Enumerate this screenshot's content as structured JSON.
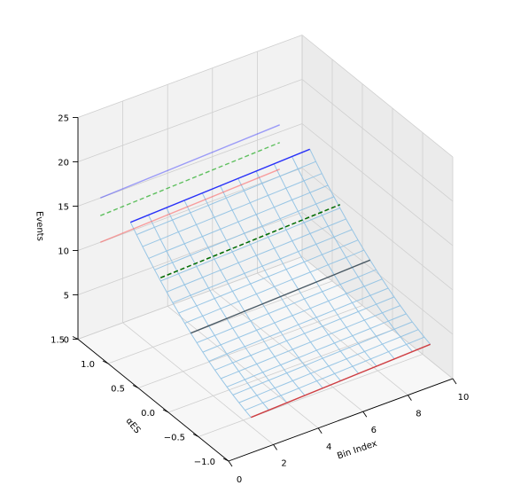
{
  "chart_data": {
    "type": "surface3d",
    "title": "",
    "xlabel": "Bin Index",
    "ylabel": "αES",
    "zlabel": "Events",
    "x_ticks": [
      "0",
      "2",
      "4",
      "6",
      "8",
      "10"
    ],
    "y_ticks": [
      "−1.0",
      "−0.5",
      "0.0",
      "0.5",
      "1.0",
      "1.5"
    ],
    "z_ticks": [
      "0",
      "5",
      "10",
      "15",
      "20",
      "25"
    ],
    "xlim": [
      0,
      10
    ],
    "ylim": [
      -1.0,
      1.5
    ],
    "zlim": [
      0,
      25
    ],
    "grid": true,
    "surface": {
      "x": [
        1,
        9
      ],
      "alpha": [
        -1.0,
        -0.9,
        -0.8,
        -0.7,
        -0.6,
        -0.5,
        -0.4,
        -0.3,
        -0.2,
        -0.1,
        0.0,
        0.1,
        0.2,
        0.3,
        0.4,
        0.5,
        0.6,
        0.7,
        0.8,
        0.9,
        1.0
      ],
      "z_at_alpha_minus1": 4,
      "z_at_alpha_0": 8,
      "z_at_alpha_1": 15,
      "x_slope": 0.1,
      "color": "#8fc1e3"
    },
    "series": [
      {
        "alpha": -1.0,
        "z0": 4,
        "color": "#d62728",
        "style": "solid",
        "opacity": 0.85
      },
      {
        "alpha": 0.0,
        "z0": 8,
        "color": "#000000",
        "style": "solid",
        "opacity": 0.55
      },
      {
        "alpha": 1.0,
        "z0": 15,
        "color": "#0000ff",
        "style": "solid",
        "opacity": 0.75
      },
      {
        "alpha": 0.5,
        "z0": 11.5,
        "color": "#000000",
        "style": "dashed",
        "opacity": 0.9
      },
      {
        "alpha": 0.5,
        "z0": 11.5,
        "color": "#008000",
        "style": "dashed",
        "opacity": 0.9
      },
      {
        "alpha": 1.5,
        "z0": 10,
        "color": "#ff4d4d",
        "style": "solid",
        "opacity": 0.5
      },
      {
        "alpha": 1.5,
        "z0": 13,
        "color": "#00a000",
        "style": "dashed",
        "opacity": 0.6
      },
      {
        "alpha": 1.5,
        "z0": 15,
        "color": "#3333ff",
        "style": "solid",
        "opacity": 0.45
      }
    ]
  }
}
